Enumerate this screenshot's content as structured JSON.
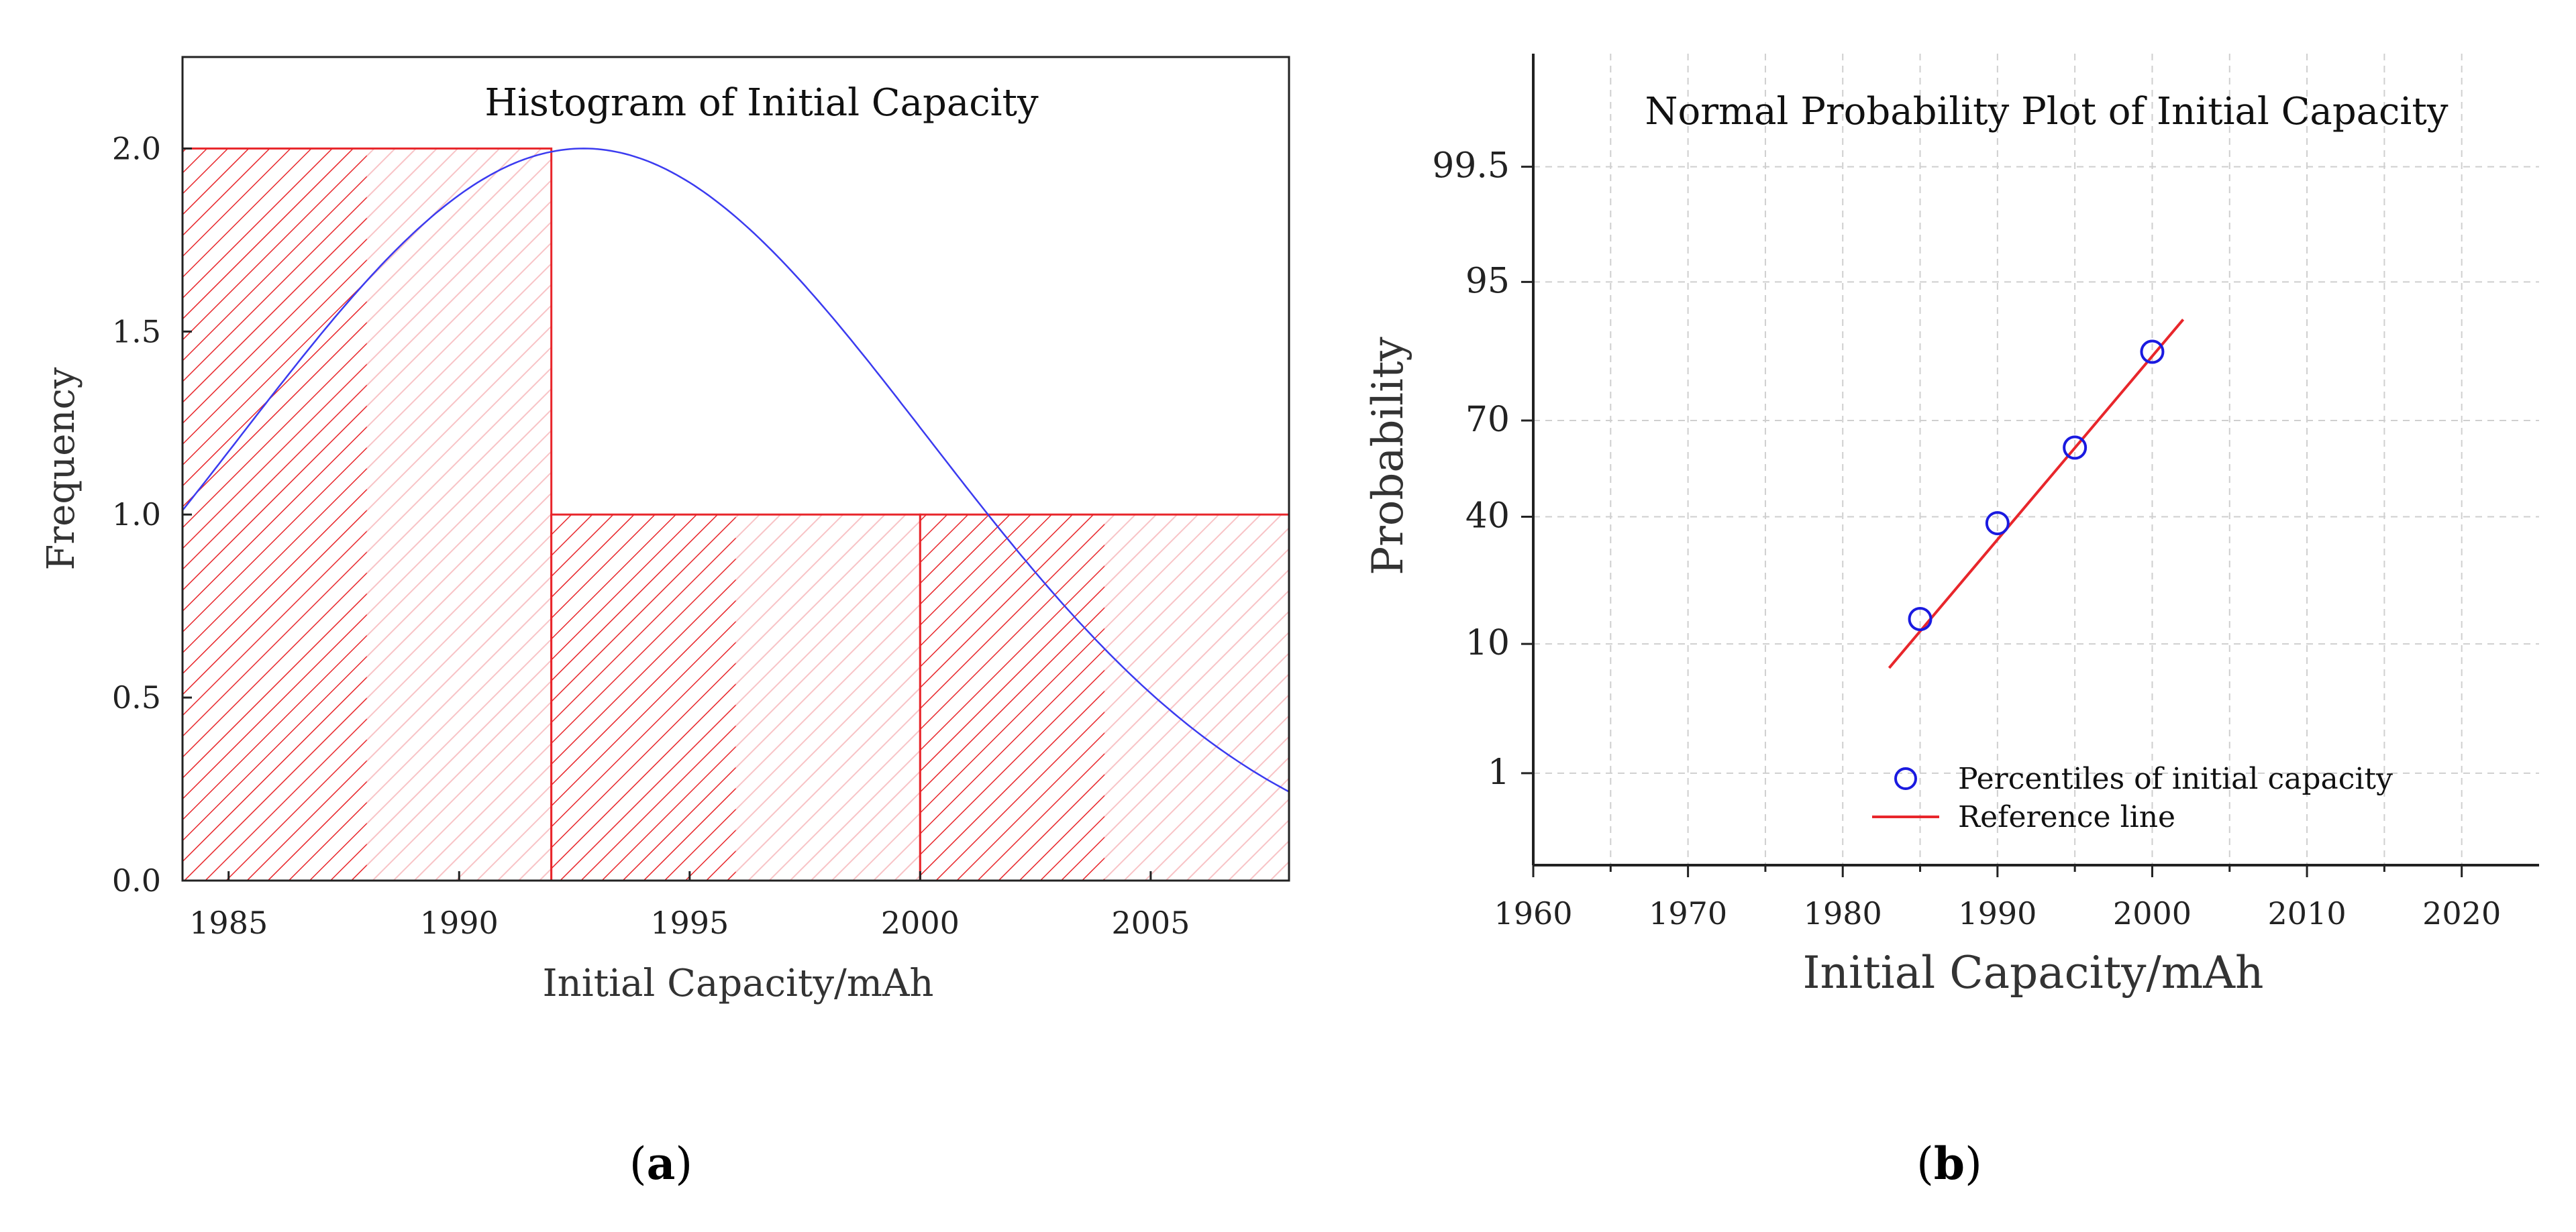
{
  "chart_data": [
    {
      "type": "bar",
      "panel_label": "a",
      "title": "Histogram of Initial Capacity",
      "xlabel": "Initial Capacity/mAh",
      "ylabel": "Frequency",
      "xlim": [
        1984,
        2008
      ],
      "ylim": [
        0,
        2.25
      ],
      "xticks": [
        "1985",
        "1990",
        "1995",
        "2000",
        "2005"
      ],
      "yticks": [
        "0.0",
        "0.5",
        "1.0",
        "1.5",
        "2.0"
      ],
      "bins": [
        {
          "start": 1984,
          "end": 1992,
          "value": 2
        },
        {
          "start": 1992,
          "end": 2000,
          "value": 1
        },
        {
          "start": 2000,
          "end": 2008,
          "value": 1
        }
      ],
      "fit_curve": {
        "type": "normal",
        "peak_x": 1992.7,
        "peak_y": 2.0,
        "sigma": 7.45
      },
      "colors": {
        "bars": "#e8262b",
        "hatch_light": "#f8c3c6",
        "curve": "#3b3bf0"
      },
      "grid": false
    },
    {
      "type": "scatter",
      "panel_label": "b",
      "title": "Normal Probability Plot of Initial Capacity",
      "xlabel": "Initial Capacity/mAh",
      "ylabel": "Probability",
      "xlim": [
        1960,
        2025
      ],
      "xticks": [
        "1960",
        "1970",
        "1980",
        "1990",
        "2000",
        "2010",
        "2020"
      ],
      "yscale": "normal-probability",
      "yticks": [
        "1",
        "10",
        "40",
        "70",
        "95",
        "99.5"
      ],
      "points": [
        {
          "x": 1985,
          "y": 14
        },
        {
          "x": 1990,
          "y": 38
        },
        {
          "x": 1995,
          "y": 62
        },
        {
          "x": 2000,
          "y": 86
        }
      ],
      "reference_line": {
        "x": [
          1983,
          2002
        ],
        "y": [
          7,
          91
        ]
      },
      "legend": {
        "position": "bottom-center",
        "entries": [
          "Percentiles of initial capacity",
          "Reference line"
        ]
      },
      "colors": {
        "points": "#1a1ae0",
        "line": "#e8262b",
        "grid": "#cfcfcf"
      },
      "grid": true
    }
  ]
}
